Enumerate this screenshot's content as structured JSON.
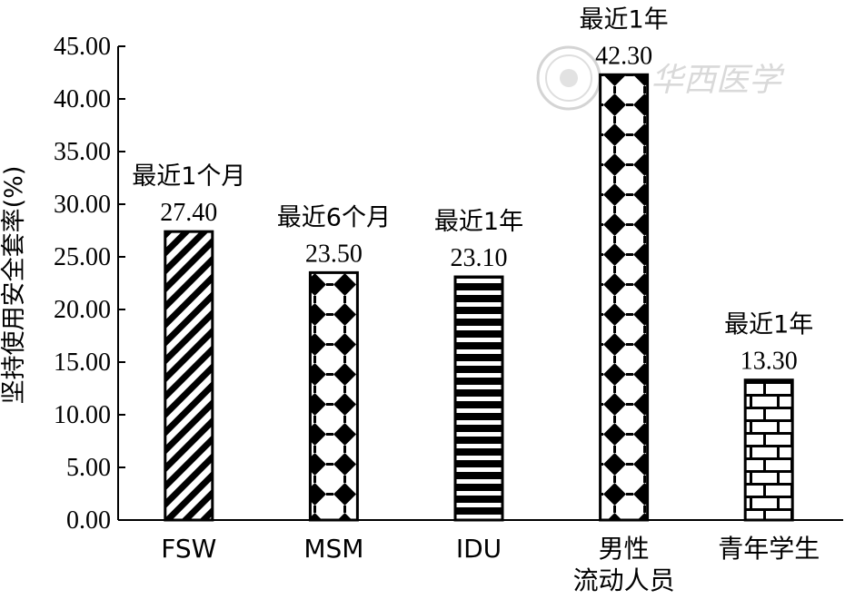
{
  "chart_data": {
    "type": "bar",
    "ylabel": "坚持使用安全套率(%)",
    "ylim": [
      0,
      45
    ],
    "yticks": [
      "0.00",
      "5.00",
      "10.00",
      "15.00",
      "20.00",
      "25.00",
      "30.00",
      "35.00",
      "40.00",
      "45.00"
    ],
    "categories": [
      {
        "lines": [
          "FSW"
        ]
      },
      {
        "lines": [
          "MSM"
        ]
      },
      {
        "lines": [
          "IDU"
        ]
      },
      {
        "lines": [
          "男性",
          "流动人员"
        ]
      },
      {
        "lines": [
          "青年学生"
        ]
      }
    ],
    "values": [
      27.4,
      23.5,
      23.1,
      42.3,
      13.3
    ],
    "value_labels": [
      "27.40",
      "23.50",
      "23.10",
      "42.30",
      "13.30"
    ],
    "period_labels": [
      "最近1个月",
      "最近6个月",
      "最近1年",
      "最近1年",
      "最近1年"
    ],
    "patterns": [
      "diagonal-stripes",
      "diamond-lattice",
      "horizontal-stripes",
      "diamond-lattice",
      "brick"
    ]
  },
  "watermark": {
    "text": "华西医学"
  }
}
